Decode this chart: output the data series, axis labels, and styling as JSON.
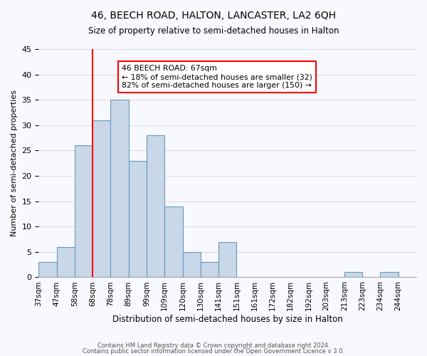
{
  "title": "46, BEECH ROAD, HALTON, LANCASTER, LA2 6QH",
  "subtitle": "Size of property relative to semi-detached houses in Halton",
  "xlabel": "Distribution of semi-detached houses by size in Halton",
  "ylabel": "Number of semi-detached properties",
  "bin_labels": [
    "37sqm",
    "47sqm",
    "58sqm",
    "68sqm",
    "78sqm",
    "89sqm",
    "99sqm",
    "109sqm",
    "120sqm",
    "130sqm",
    "141sqm",
    "151sqm",
    "161sqm",
    "172sqm",
    "182sqm",
    "192sqm",
    "203sqm",
    "213sqm",
    "223sqm",
    "234sqm",
    "244sqm"
  ],
  "bin_counts": [
    3,
    6,
    26,
    31,
    35,
    23,
    28,
    14,
    5,
    3,
    7,
    0,
    0,
    0,
    0,
    0,
    0,
    1,
    0,
    1,
    0
  ],
  "bar_color": "#c8d8e8",
  "bar_edge_color": "#6699bb",
  "highlight_line_color": "red",
  "annotation_title": "46 BEECH ROAD: 67sqm",
  "annotation_line1": "← 18% of semi-detached houses are smaller (32)",
  "annotation_line2": "82% of semi-detached houses are larger (150) →",
  "annotation_box_color": "white",
  "annotation_box_edge": "red",
  "ylim": [
    0,
    45
  ],
  "yticks": [
    0,
    5,
    10,
    15,
    20,
    25,
    30,
    35,
    40,
    45
  ],
  "footer1": "Contains HM Land Registry data © Crown copyright and database right 2024.",
  "footer2": "Contains public sector information licensed under the Open Government Licence v 3.0.",
  "background_color": "#f8f8ff",
  "grid_color": "#ddddee"
}
